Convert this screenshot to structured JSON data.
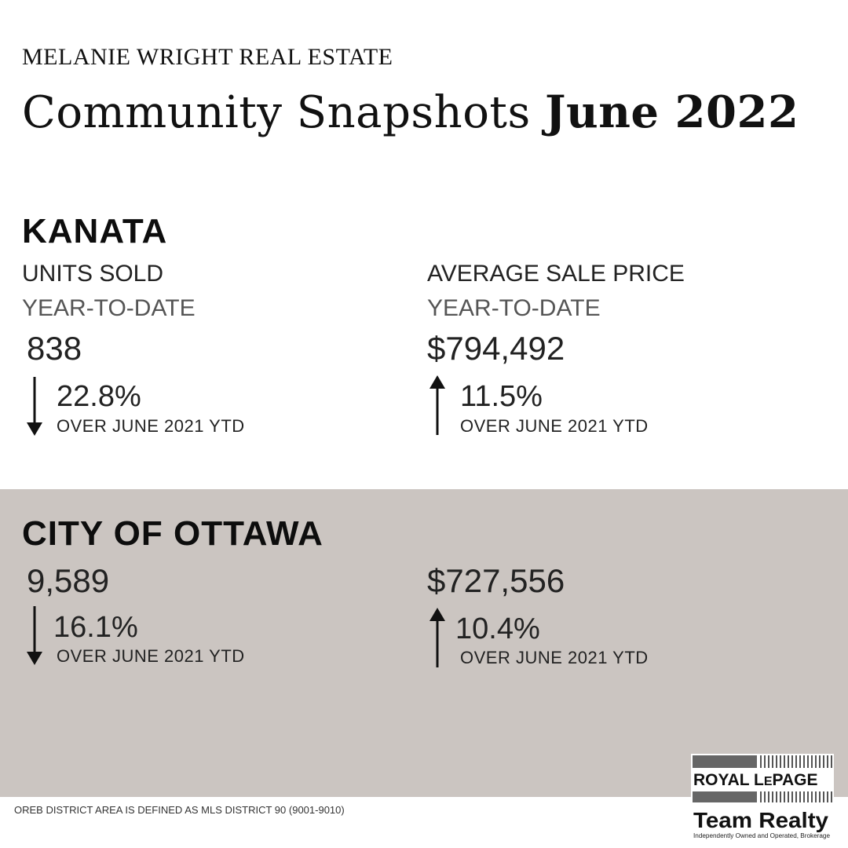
{
  "header": {
    "brand": "MELANIE WRIGHT REAL ESTATE",
    "title_regular": "Community Snapshots",
    "title_bold": "June 2022"
  },
  "kanata": {
    "heading": "KANATA",
    "units": {
      "label": "UNITS SOLD",
      "period": "YEAR-TO-DATE",
      "value": "838",
      "change": "22.8%",
      "direction": "down",
      "compare": "OVER JUNE 2021 YTD"
    },
    "price": {
      "label": "AVERAGE SALE PRICE",
      "period": "YEAR-TO-DATE",
      "value": "$794,492",
      "change": "11.5%",
      "direction": "up",
      "compare": "OVER JUNE 2021 YTD"
    }
  },
  "ottawa": {
    "heading": "CITY OF OTTAWA",
    "units": {
      "value": "9,589",
      "change": "16.1%",
      "direction": "down",
      "compare": "OVER JUNE 2021 YTD"
    },
    "price": {
      "value": "$727,556",
      "change": "10.4%",
      "direction": "up",
      "compare": "OVER JUNE 2021 YTD"
    }
  },
  "footer": {
    "note": "OREB DISTRICT AREA IS DEFINED AS MLS DISTRICT 90 (9001-9010)"
  },
  "logo": {
    "line1": "ROYAL LEPAGE",
    "line2": "Team Realty",
    "tagline": "Independently Owned and Operated, Brokerage"
  },
  "colors": {
    "background": "#ffffff",
    "panel": "#cbc5c1",
    "text": "#111111"
  }
}
